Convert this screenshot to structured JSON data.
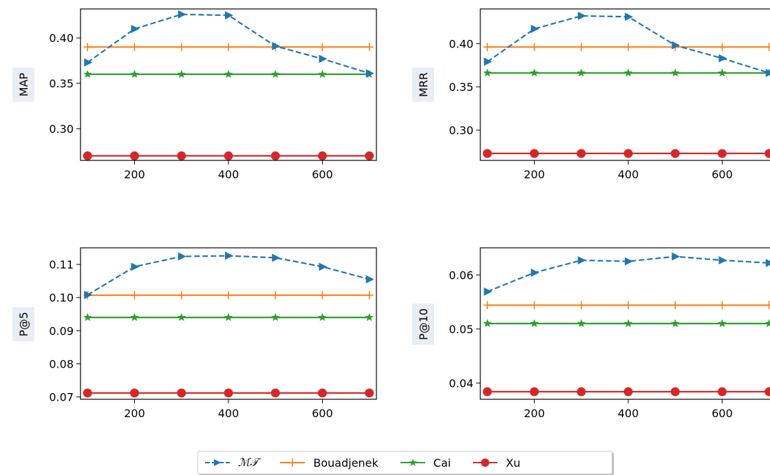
{
  "colors": {
    "MT": "#1f77b4",
    "Bouadjenek": "#ff7f0e",
    "Cai": "#2ca02c",
    "Xu": "#d62728"
  },
  "legend": {
    "items": [
      {
        "key": "MT",
        "label": "ℳ𝒯",
        "line": "dashed",
        "marker": "triangle-right"
      },
      {
        "key": "Bouadjenek",
        "label": "Bouadjenek",
        "line": "solid",
        "marker": "plus"
      },
      {
        "key": "Cai",
        "label": "Cai",
        "line": "solid",
        "marker": "star"
      },
      {
        "key": "Xu",
        "label": "Xu",
        "line": "solid",
        "marker": "circle"
      }
    ]
  },
  "chart_data": [
    {
      "type": "line",
      "ylabel": "MAP",
      "xlim": [
        85,
        715
      ],
      "ylim": [
        0.265,
        0.432
      ],
      "xticks": [
        200,
        400,
        600
      ],
      "yticks": [
        0.3,
        0.35,
        0.4
      ],
      "ytick_labels": [
        "0.30",
        "0.35",
        "0.40"
      ],
      "series": [
        {
          "key": "MT",
          "x": [
            100,
            200,
            300,
            400,
            500,
            600,
            700
          ],
          "y": [
            0.373,
            0.41,
            0.426,
            0.425,
            0.391,
            0.377,
            0.361
          ]
        },
        {
          "key": "Bouadjenek",
          "x": [
            100,
            200,
            300,
            400,
            500,
            600,
            700
          ],
          "y": [
            0.39,
            0.39,
            0.39,
            0.39,
            0.39,
            0.39,
            0.39
          ]
        },
        {
          "key": "Cai",
          "x": [
            100,
            200,
            300,
            400,
            500,
            600,
            700
          ],
          "y": [
            0.36,
            0.36,
            0.36,
            0.36,
            0.36,
            0.36,
            0.36
          ]
        },
        {
          "key": "Xu",
          "x": [
            100,
            200,
            300,
            400,
            500,
            600,
            700
          ],
          "y": [
            0.27,
            0.27,
            0.27,
            0.27,
            0.27,
            0.27,
            0.27
          ]
        }
      ]
    },
    {
      "type": "line",
      "ylabel": "MRR",
      "xlim": [
        85,
        715
      ],
      "ylim": [
        0.265,
        0.44
      ],
      "xticks": [
        200,
        400,
        600
      ],
      "yticks": [
        0.3,
        0.35,
        0.4
      ],
      "ytick_labels": [
        "0.30",
        "0.35",
        "0.40"
      ],
      "series": [
        {
          "key": "MT",
          "x": [
            100,
            200,
            300,
            400,
            500,
            600,
            700
          ],
          "y": [
            0.379,
            0.417,
            0.432,
            0.431,
            0.398,
            0.383,
            0.366
          ]
        },
        {
          "key": "Bouadjenek",
          "x": [
            100,
            200,
            300,
            400,
            500,
            600,
            700
          ],
          "y": [
            0.396,
            0.396,
            0.396,
            0.396,
            0.396,
            0.396,
            0.396
          ]
        },
        {
          "key": "Cai",
          "x": [
            100,
            200,
            300,
            400,
            500,
            600,
            700
          ],
          "y": [
            0.366,
            0.366,
            0.366,
            0.366,
            0.366,
            0.366,
            0.366
          ]
        },
        {
          "key": "Xu",
          "x": [
            100,
            200,
            300,
            400,
            500,
            600,
            700
          ],
          "y": [
            0.273,
            0.273,
            0.273,
            0.273,
            0.273,
            0.273,
            0.273
          ]
        }
      ]
    },
    {
      "type": "line",
      "ylabel": "P@5",
      "xlim": [
        85,
        715
      ],
      "ylim": [
        0.0693,
        0.115
      ],
      "xticks": [
        200,
        400,
        600
      ],
      "yticks": [
        0.07,
        0.08,
        0.09,
        0.1,
        0.11
      ],
      "ytick_labels": [
        "0.07",
        "0.08",
        "0.09",
        "0.10",
        "0.11"
      ],
      "series": [
        {
          "key": "MT",
          "x": [
            100,
            200,
            300,
            400,
            500,
            600,
            700
          ],
          "y": [
            0.1008,
            0.1093,
            0.1124,
            0.1126,
            0.112,
            0.1093,
            0.1055
          ]
        },
        {
          "key": "Bouadjenek",
          "x": [
            100,
            200,
            300,
            400,
            500,
            600,
            700
          ],
          "y": [
            0.1007,
            0.1007,
            0.1007,
            0.1007,
            0.1007,
            0.1007,
            0.1007
          ]
        },
        {
          "key": "Cai",
          "x": [
            100,
            200,
            300,
            400,
            500,
            600,
            700
          ],
          "y": [
            0.094,
            0.094,
            0.094,
            0.094,
            0.094,
            0.094,
            0.094
          ]
        },
        {
          "key": "Xu",
          "x": [
            100,
            200,
            300,
            400,
            500,
            600,
            700
          ],
          "y": [
            0.0712,
            0.0712,
            0.0712,
            0.0712,
            0.0712,
            0.0712,
            0.0712
          ]
        }
      ]
    },
    {
      "type": "line",
      "ylabel": "P@10",
      "xlim": [
        85,
        715
      ],
      "ylim": [
        0.037,
        0.065
      ],
      "xticks": [
        200,
        400,
        600
      ],
      "yticks": [
        0.04,
        0.05,
        0.06
      ],
      "ytick_labels": [
        "0.04",
        "0.05",
        "0.06"
      ],
      "series": [
        {
          "key": "MT",
          "x": [
            100,
            200,
            300,
            400,
            500,
            600,
            700
          ],
          "y": [
            0.0569,
            0.0604,
            0.0627,
            0.0625,
            0.0634,
            0.0627,
            0.0622
          ]
        },
        {
          "key": "Bouadjenek",
          "x": [
            100,
            200,
            300,
            400,
            500,
            600,
            700
          ],
          "y": [
            0.0544,
            0.0544,
            0.0544,
            0.0544,
            0.0544,
            0.0544,
            0.0544
          ]
        },
        {
          "key": "Cai",
          "x": [
            100,
            200,
            300,
            400,
            500,
            600,
            700
          ],
          "y": [
            0.051,
            0.051,
            0.051,
            0.051,
            0.051,
            0.051,
            0.051
          ]
        },
        {
          "key": "Xu",
          "x": [
            100,
            200,
            300,
            400,
            500,
            600,
            700
          ],
          "y": [
            0.0384,
            0.0384,
            0.0384,
            0.0384,
            0.0384,
            0.0384,
            0.0384
          ]
        }
      ]
    }
  ]
}
